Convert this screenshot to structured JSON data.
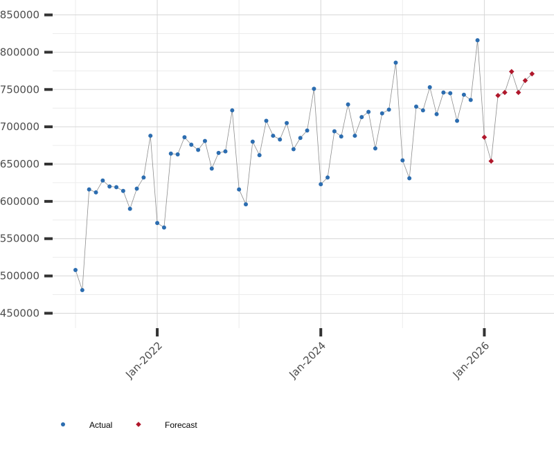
{
  "chart_data": {
    "type": "line",
    "title": "",
    "xlabel": "",
    "ylabel": "",
    "x_start": "2021-01",
    "ylim": [
      430000,
      870000
    ],
    "y_ticks": [
      450000,
      500000,
      550000,
      600000,
      650000,
      700000,
      750000,
      800000,
      850000
    ],
    "y_tick_labels": [
      "450000",
      "500000",
      "550000",
      "600000",
      "650000",
      "700000",
      "750000",
      "800000",
      "850000"
    ],
    "x_ticks": [
      {
        "index": 12,
        "label": "Jan-2022"
      },
      {
        "index": 36,
        "label": "Jan-2024"
      },
      {
        "index": 60,
        "label": "Jan-2026"
      }
    ],
    "grid": true,
    "legend_position": "bottom-left",
    "series": [
      {
        "name": "Actual",
        "color": "#2c6db0",
        "marker": "circle",
        "start_index": 0,
        "values": [
          508000,
          481000,
          616000,
          612000,
          628000,
          620000,
          619000,
          614000,
          590000,
          617000,
          632000,
          688000,
          571000,
          565000,
          664000,
          663000,
          686000,
          676000,
          669000,
          681000,
          644000,
          665000,
          667000,
          722000,
          616000,
          596000,
          680000,
          662000,
          708000,
          688000,
          683000,
          705000,
          670000,
          685000,
          695000,
          751000,
          623000,
          632000,
          694000,
          687000,
          730000,
          688000,
          713000,
          720000,
          671000,
          718000,
          723000,
          786000,
          655000,
          631000,
          727000,
          722000,
          753000,
          717000,
          746000,
          745000,
          708000,
          743000,
          736000,
          816000
        ]
      },
      {
        "name": "Forecast",
        "color": "#b0172b",
        "marker": "diamond",
        "start_index": 60,
        "values": [
          686000,
          654000,
          742000,
          746000,
          774000,
          746000,
          762000,
          771000
        ]
      }
    ],
    "connector_color": "#8c8c8c"
  }
}
